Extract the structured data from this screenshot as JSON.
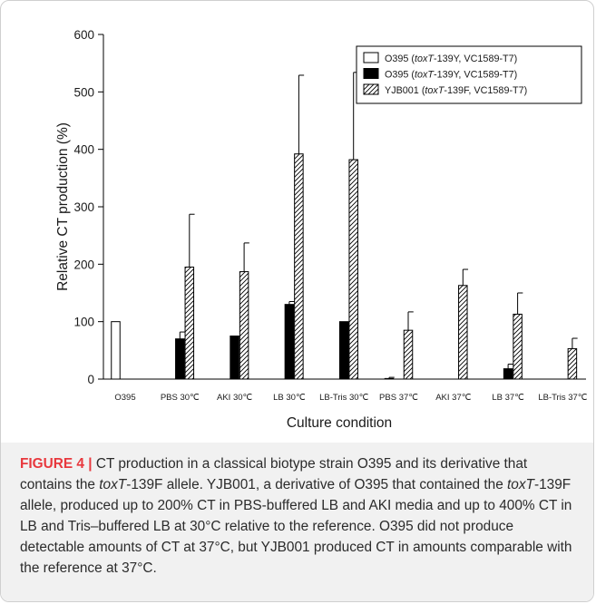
{
  "figure": {
    "caption_label": "FIGURE 4 |",
    "caption_1": " CT production in a classical biotype strain O395 and its derivative that contains the ",
    "caption_2": "toxT",
    "caption_3": "-139F allele. YJB001, a derivative of O395 that contained the ",
    "caption_4": "toxT",
    "caption_5": "-139F allele, produced up to 200% CT in PBS-buffered LB and AKI media and up to 400% CT in LB and Tris–buffered LB at 30°C relative to the reference. O395 did not produce detectable amounts of CT at 37°C, but YJB001 produced CT in amounts comparable with the reference at 37°C."
  },
  "legend": {
    "items": [
      {
        "pre": "O395 (",
        "gene": "toxT",
        "post": "-139Y, VC1589-T7)",
        "fill": "white"
      },
      {
        "pre": "O395 (",
        "gene": "toxT",
        "post": "-139Y, VC1589-T7)",
        "fill": "black"
      },
      {
        "pre": "YJB001 (",
        "gene": "toxT",
        "post": "-139F, VC1589-T7)",
        "fill": "hatch"
      }
    ]
  },
  "chart_data": {
    "type": "bar",
    "xlabel": "Culture condition",
    "ylabel": "Relative CT production (%)",
    "ylim": [
      0,
      600
    ],
    "yticks": [
      0,
      100,
      200,
      300,
      400,
      500,
      600
    ],
    "categories": [
      "O395",
      "PBS 30℃",
      "AKI 30℃",
      "LB 30℃",
      "LB-Tris 30℃",
      "PBS 37℃",
      "AKI 37℃",
      "LB 37℃",
      "LB-Tris 37℃"
    ],
    "legend_position": "top-right",
    "series": [
      {
        "name": "O395 (toxT-139Y, VC1589-T7)",
        "style": "white",
        "values": [
          100,
          null,
          null,
          null,
          null,
          1,
          null,
          null,
          null
        ],
        "errors": [
          null,
          null,
          null,
          null,
          null,
          2,
          null,
          null,
          null
        ]
      },
      {
        "name": "O395 (toxT-139Y, VC1589-T7)",
        "style": "black",
        "values": [
          null,
          70,
          75,
          130,
          100,
          null,
          null,
          18,
          null
        ],
        "errors": [
          null,
          12,
          null,
          5,
          null,
          null,
          null,
          8,
          null
        ]
      },
      {
        "name": "YJB001 (toxT-139F, VC1589-T7)",
        "style": "hatch",
        "values": [
          null,
          195,
          187,
          392,
          382,
          85,
          163,
          113,
          53
        ],
        "errors": [
          null,
          92,
          50,
          137,
          152,
          32,
          28,
          37,
          18
        ]
      }
    ],
    "colors": {
      "bar_stroke": "#000000",
      "black_fill": "#000000",
      "white_fill": "#ffffff"
    }
  }
}
